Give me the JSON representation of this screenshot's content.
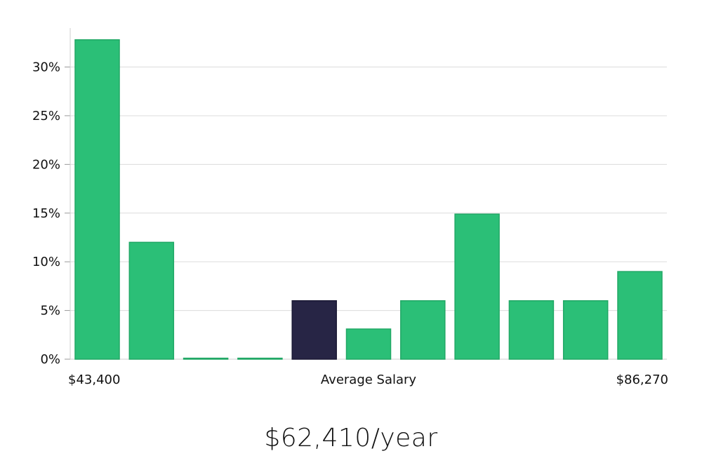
{
  "colors": {
    "bar": "#2bbf77",
    "bar_stroke": "#22a866",
    "highlight": "#272545",
    "grid": "#dcdcdc"
  },
  "chart_data": {
    "type": "bar",
    "categories": [
      "1",
      "2",
      "3",
      "4",
      "5",
      "6",
      "7",
      "8",
      "9",
      "10",
      "11"
    ],
    "values": [
      32.8,
      12.0,
      0.1,
      0.1,
      6.0,
      3.1,
      6.0,
      14.9,
      6.0,
      6.0,
      9.0
    ],
    "highlight_index": 4,
    "ylim": [
      0,
      34
    ],
    "y_ticks": [
      0,
      5,
      10,
      15,
      20,
      25,
      30
    ],
    "y_tick_format": "%",
    "grid": true,
    "x_labels": {
      "min": "$43,400",
      "center": "Average Salary",
      "max": "$86,270"
    }
  },
  "summary": {
    "salary": "$62,410/year"
  }
}
